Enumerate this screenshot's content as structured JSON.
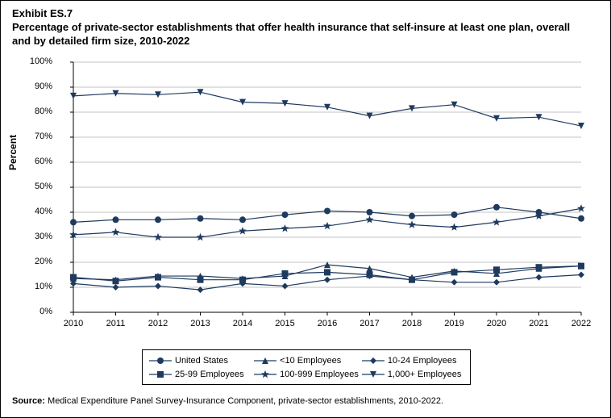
{
  "heading": {
    "exhibit": "Exhibit ES.7",
    "title_line1": "Percentage of private-sector establishments that offer health insurance that self-insure at least one plan, overall",
    "title_line2": "and by detailed firm size, 2010-2022"
  },
  "source": {
    "label": "Source:",
    "text": " Medical Expenditure Panel Survey-Insurance Component, private-sector establishments, 2010-2022."
  },
  "chart": {
    "type": "line",
    "ylabel": "Percent",
    "ylim": [
      0,
      100
    ],
    "ytick_step": 10,
    "ytick_suffix": "%",
    "xlim": [
      2010,
      2022
    ],
    "xtick_step": 1,
    "line_color": "#1f3a5f",
    "line_width": 1.2,
    "marker_size": 4,
    "grid_color": "#888888",
    "grid_width": 0.5,
    "border_color": "#000000",
    "background_color": "#ffffff",
    "series": [
      {
        "name": "United States",
        "marker": "circle",
        "values": [
          36,
          37,
          37,
          37.5,
          37,
          39,
          40.5,
          40,
          38.5,
          39,
          42,
          40,
          37.5
        ]
      },
      {
        "name": "<10 Employees",
        "marker": "triangle",
        "values": [
          13.5,
          13,
          14.5,
          14.5,
          13.5,
          14.5,
          19,
          17.5,
          14,
          16.5,
          15.5,
          17.5,
          18.5
        ]
      },
      {
        "name": "10-24 Employees",
        "marker": "diamond",
        "values": [
          11.5,
          10,
          10.5,
          9,
          11.5,
          10.5,
          13,
          14.5,
          13,
          12,
          12,
          14,
          15
        ]
      },
      {
        "name": "25-99 Employees",
        "marker": "square",
        "values": [
          14,
          12.5,
          14,
          13,
          13,
          15.5,
          16,
          15,
          13,
          16,
          17,
          18,
          18.5
        ]
      },
      {
        "name": "100-999 Employees",
        "marker": "star",
        "values": [
          31,
          32,
          30,
          30,
          32.5,
          33.5,
          34.5,
          37,
          35,
          34,
          36,
          38.5,
          41.5
        ]
      },
      {
        "name": "1,000+ Employees",
        "marker": "triangle-down",
        "values": [
          86.5,
          87.5,
          87,
          88,
          84,
          83.5,
          82,
          78.5,
          81.5,
          83,
          77.5,
          78,
          74.5
        ]
      }
    ]
  }
}
